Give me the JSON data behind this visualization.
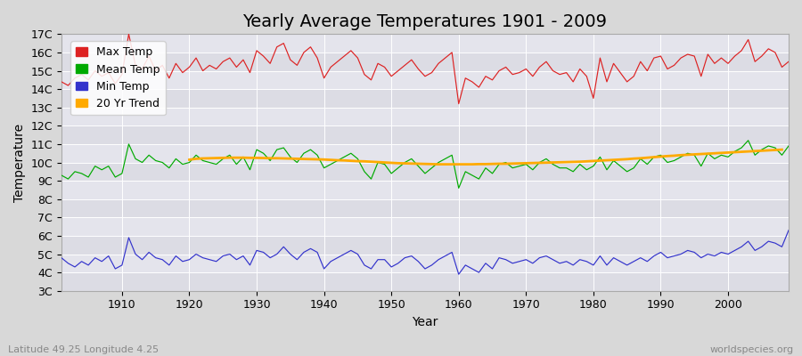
{
  "title": "Yearly Average Temperatures 1901 - 2009",
  "xlabel": "Year",
  "ylabel": "Temperature",
  "lat_lon_text": "Latitude 49.25 Longitude 4.25",
  "watermark": "worldspecies.org",
  "years": [
    1901,
    1902,
    1903,
    1904,
    1905,
    1906,
    1907,
    1908,
    1909,
    1910,
    1911,
    1912,
    1913,
    1914,
    1915,
    1916,
    1917,
    1918,
    1919,
    1920,
    1921,
    1922,
    1923,
    1924,
    1925,
    1926,
    1927,
    1928,
    1929,
    1930,
    1931,
    1932,
    1933,
    1934,
    1935,
    1936,
    1937,
    1938,
    1939,
    1940,
    1941,
    1942,
    1943,
    1944,
    1945,
    1946,
    1947,
    1948,
    1949,
    1950,
    1951,
    1952,
    1953,
    1954,
    1955,
    1956,
    1957,
    1958,
    1959,
    1960,
    1961,
    1962,
    1963,
    1964,
    1965,
    1966,
    1967,
    1968,
    1969,
    1970,
    1971,
    1972,
    1973,
    1974,
    1975,
    1976,
    1977,
    1978,
    1979,
    1980,
    1981,
    1982,
    1983,
    1984,
    1985,
    1986,
    1987,
    1988,
    1989,
    1990,
    1991,
    1992,
    1993,
    1994,
    1995,
    1996,
    1997,
    1998,
    1999,
    2000,
    2001,
    2002,
    2003,
    2004,
    2005,
    2006,
    2007,
    2008,
    2009
  ],
  "max_temp": [
    14.4,
    14.2,
    14.6,
    14.8,
    14.5,
    15.0,
    14.7,
    14.9,
    14.3,
    14.8,
    17.0,
    15.3,
    15.1,
    15.8,
    15.0,
    15.3,
    14.6,
    15.4,
    14.9,
    15.2,
    15.7,
    15.0,
    15.3,
    15.1,
    15.5,
    15.7,
    15.2,
    15.6,
    14.9,
    16.1,
    15.8,
    15.4,
    16.3,
    16.5,
    15.6,
    15.3,
    16.0,
    16.3,
    15.7,
    14.6,
    15.2,
    15.5,
    15.8,
    16.1,
    15.7,
    14.8,
    14.5,
    15.4,
    15.2,
    14.7,
    15.0,
    15.3,
    15.6,
    15.1,
    14.7,
    14.9,
    15.4,
    15.7,
    16.0,
    13.2,
    14.6,
    14.4,
    14.1,
    14.7,
    14.5,
    15.0,
    15.2,
    14.8,
    14.9,
    15.1,
    14.7,
    15.2,
    15.5,
    15.0,
    14.8,
    14.9,
    14.4,
    15.1,
    14.7,
    13.5,
    15.7,
    14.4,
    15.4,
    14.9,
    14.4,
    14.7,
    15.5,
    15.0,
    15.7,
    15.8,
    15.1,
    15.3,
    15.7,
    15.9,
    15.8,
    14.7,
    15.9,
    15.4,
    15.7,
    15.4,
    15.8,
    16.1,
    16.7,
    15.5,
    15.8,
    16.2,
    16.0,
    15.2,
    15.5
  ],
  "mean_temp": [
    9.3,
    9.1,
    9.5,
    9.4,
    9.2,
    9.8,
    9.6,
    9.8,
    9.2,
    9.4,
    11.0,
    10.2,
    10.0,
    10.4,
    10.1,
    10.0,
    9.7,
    10.2,
    9.9,
    10.0,
    10.4,
    10.1,
    10.0,
    9.9,
    10.2,
    10.4,
    9.9,
    10.3,
    9.6,
    10.7,
    10.5,
    10.1,
    10.7,
    10.8,
    10.3,
    10.0,
    10.5,
    10.7,
    10.4,
    9.7,
    9.9,
    10.1,
    10.3,
    10.5,
    10.2,
    9.5,
    9.1,
    10.0,
    9.9,
    9.4,
    9.7,
    10.0,
    10.2,
    9.8,
    9.4,
    9.7,
    10.0,
    10.2,
    10.4,
    8.6,
    9.5,
    9.3,
    9.1,
    9.7,
    9.4,
    9.9,
    10.0,
    9.7,
    9.8,
    9.9,
    9.6,
    10.0,
    10.2,
    9.9,
    9.7,
    9.7,
    9.5,
    9.9,
    9.6,
    9.8,
    10.3,
    9.6,
    10.1,
    9.8,
    9.5,
    9.7,
    10.2,
    9.9,
    10.3,
    10.4,
    10.0,
    10.1,
    10.3,
    10.5,
    10.4,
    9.8,
    10.5,
    10.2,
    10.4,
    10.3,
    10.6,
    10.8,
    11.2,
    10.4,
    10.7,
    10.9,
    10.8,
    10.4,
    10.9
  ],
  "min_temp": [
    4.8,
    4.5,
    4.3,
    4.6,
    4.4,
    4.8,
    4.6,
    4.9,
    4.2,
    4.4,
    5.9,
    5.0,
    4.7,
    5.1,
    4.8,
    4.7,
    4.4,
    4.9,
    4.6,
    4.7,
    5.0,
    4.8,
    4.7,
    4.6,
    4.9,
    5.0,
    4.7,
    4.9,
    4.4,
    5.2,
    5.1,
    4.8,
    5.0,
    5.4,
    5.0,
    4.7,
    5.1,
    5.3,
    5.1,
    4.2,
    4.6,
    4.8,
    5.0,
    5.2,
    5.0,
    4.4,
    4.2,
    4.7,
    4.7,
    4.3,
    4.5,
    4.8,
    4.9,
    4.6,
    4.2,
    4.4,
    4.7,
    4.9,
    5.1,
    3.9,
    4.4,
    4.2,
    4.0,
    4.5,
    4.2,
    4.8,
    4.7,
    4.5,
    4.6,
    4.7,
    4.5,
    4.8,
    4.9,
    4.7,
    4.5,
    4.6,
    4.4,
    4.7,
    4.6,
    4.4,
    4.9,
    4.4,
    4.8,
    4.6,
    4.4,
    4.6,
    4.8,
    4.6,
    4.9,
    5.1,
    4.8,
    4.9,
    5.0,
    5.2,
    5.1,
    4.8,
    5.0,
    4.9,
    5.1,
    5.0,
    5.2,
    5.4,
    5.7,
    5.2,
    5.4,
    5.7,
    5.6,
    5.4,
    6.3
  ],
  "trend_20yr": [
    null,
    null,
    null,
    null,
    null,
    null,
    null,
    null,
    null,
    null,
    null,
    null,
    null,
    null,
    null,
    null,
    null,
    null,
    null,
    10.15,
    10.2,
    10.22,
    10.23,
    10.24,
    10.25,
    10.26,
    10.26,
    10.26,
    10.25,
    10.25,
    10.24,
    10.23,
    10.23,
    10.22,
    10.21,
    10.2,
    10.19,
    10.18,
    10.17,
    10.16,
    10.14,
    10.12,
    10.11,
    10.09,
    10.07,
    10.06,
    10.04,
    10.02,
    10.0,
    9.98,
    9.96,
    9.95,
    9.94,
    9.93,
    9.92,
    9.91,
    9.9,
    9.9,
    9.9,
    9.9,
    9.9,
    9.9,
    9.91,
    9.91,
    9.92,
    9.93,
    9.93,
    9.94,
    9.95,
    9.96,
    9.97,
    9.98,
    9.99,
    10.0,
    10.01,
    10.02,
    10.03,
    10.04,
    10.06,
    10.08,
    10.1,
    10.12,
    10.14,
    10.16,
    10.18,
    10.21,
    10.23,
    10.26,
    10.29,
    10.32,
    10.35,
    10.37,
    10.4,
    10.42,
    10.44,
    10.46,
    10.48,
    10.5,
    10.52,
    10.54,
    10.56,
    10.58,
    10.6,
    10.62,
    10.64,
    10.66,
    10.68,
    10.7
  ],
  "max_color": "#dd2222",
  "mean_color": "#00aa00",
  "min_color": "#3333cc",
  "trend_color": "#ffaa00",
  "bg_color": "#d8d8d8",
  "plot_bg_color": "#e8e8ec",
  "band_colors": [
    "#dcdce4",
    "#e4e4ec"
  ],
  "ylim": [
    3,
    17
  ],
  "yticks": [
    3,
    4,
    5,
    6,
    7,
    8,
    9,
    10,
    11,
    12,
    13,
    14,
    15,
    16,
    17
  ],
  "ytick_labels": [
    "3C",
    "4C",
    "5C",
    "6C",
    "7C",
    "8C",
    "9C",
    "10C",
    "11C",
    "12C",
    "13C",
    "14C",
    "15C",
    "16C",
    "17C"
  ],
  "xlim_left": 1901,
  "xlim_right": 2009,
  "title_fontsize": 14,
  "axis_label_fontsize": 10,
  "tick_fontsize": 9,
  "legend_fontsize": 9,
  "watermark_fontsize": 8,
  "latlon_fontsize": 8
}
